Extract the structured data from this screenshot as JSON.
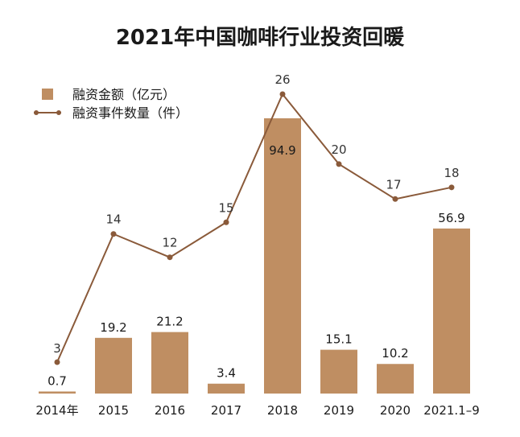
{
  "chart_data": {
    "type": "bar",
    "title": "2021年中国咖啡行业投资回暖",
    "categories": [
      "2014年",
      "2015",
      "2016",
      "2017",
      "2018",
      "2019",
      "2020",
      "2021.1–9"
    ],
    "series": [
      {
        "name": "融资金额（亿元）",
        "type": "bar",
        "values": [
          0.7,
          19.2,
          21.2,
          3.4,
          94.9,
          15.1,
          10.2,
          56.9
        ],
        "labels": [
          "0.7",
          "19.2",
          "21.2",
          "3.4",
          "94.9",
          "15.1",
          "10.2",
          "56.9"
        ]
      },
      {
        "name": "融资事件数量（件）",
        "type": "line",
        "values": [
          3,
          14,
          12,
          15,
          26,
          20,
          17,
          18
        ],
        "labels": [
          "3",
          "14",
          "12",
          "15",
          "26",
          "20",
          "17",
          "18"
        ]
      }
    ],
    "bar_ylim": [
      0,
      100
    ],
    "line_ylim": [
      0,
      28
    ],
    "legend_position": "top-left",
    "grid": false,
    "colors": {
      "bar": "#bf8e62",
      "line": "#8a5a3a",
      "tick": "#1a1a1a",
      "tick_highlight": "#c49066"
    },
    "highlight_category_index": 7
  }
}
